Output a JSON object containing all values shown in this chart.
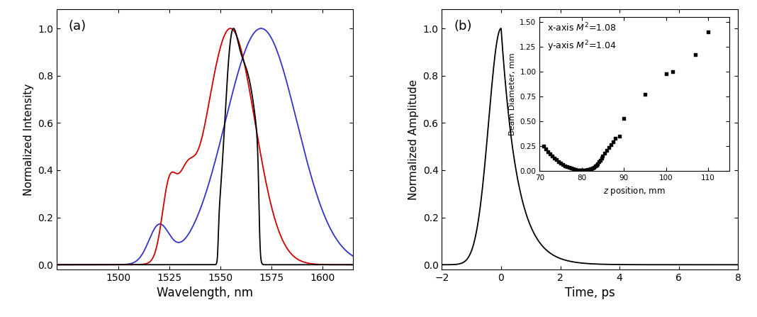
{
  "panel_a": {
    "label": "(a)",
    "xlabel": "Wavelength, nm",
    "ylabel": "Normalized Intensity",
    "xlim": [
      1470,
      1615
    ],
    "ylim": [
      -0.02,
      1.08
    ],
    "xticks": [
      1500,
      1525,
      1550,
      1575,
      1600
    ],
    "yticks": [
      0.0,
      0.2,
      0.4,
      0.6,
      0.8,
      1.0
    ]
  },
  "panel_b": {
    "label": "(b)",
    "xlabel": "Time, ps",
    "ylabel": "Normalized Amplitude",
    "xlim": [
      -2,
      8
    ],
    "ylim": [
      -0.02,
      1.08
    ],
    "xticks": [
      -2,
      0,
      2,
      4,
      6,
      8
    ],
    "yticks": [
      0.0,
      0.2,
      0.4,
      0.6,
      0.8,
      1.0
    ]
  },
  "inset": {
    "xlabel": "z position, mm",
    "ylabel": "Beam Diameter, mm",
    "xlim": [
      70,
      115
    ],
    "ylim": [
      0.0,
      1.55
    ],
    "xticks": [
      70,
      80,
      90,
      100,
      110
    ],
    "yticks": [
      0.0,
      0.25,
      0.5,
      0.75,
      1.0,
      1.25,
      1.5
    ],
    "annotation_line1": "x-axis M",
    "annotation_line2": "y-axis M",
    "z_data": [
      71.0,
      71.5,
      72.0,
      72.5,
      73.0,
      73.5,
      74.0,
      74.5,
      75.0,
      75.5,
      76.0,
      76.5,
      77.0,
      77.5,
      78.0,
      78.5,
      79.0,
      79.3,
      79.6,
      79.9,
      80.2,
      80.5,
      80.8,
      81.1,
      81.4,
      81.7,
      82.0,
      82.3,
      82.6,
      82.9,
      83.2,
      83.5,
      83.8,
      84.1,
      84.4,
      84.7,
      85.0,
      85.5,
      86.0,
      86.5,
      87.0,
      87.5,
      88.0,
      89.0,
      90.0,
      95.0,
      100.0,
      101.5,
      107.0,
      110.0
    ],
    "d_data": [
      0.25,
      0.22,
      0.19,
      0.17,
      0.15,
      0.13,
      0.11,
      0.09,
      0.08,
      0.06,
      0.05,
      0.04,
      0.03,
      0.025,
      0.018,
      0.012,
      0.008,
      0.006,
      0.005,
      0.004,
      0.004,
      0.005,
      0.006,
      0.008,
      0.01,
      0.013,
      0.017,
      0.022,
      0.028,
      0.035,
      0.045,
      0.058,
      0.072,
      0.088,
      0.105,
      0.125,
      0.148,
      0.175,
      0.205,
      0.235,
      0.265,
      0.295,
      0.325,
      0.35,
      0.53,
      0.77,
      0.98,
      1.0,
      1.17,
      1.4
    ]
  },
  "line_color_blue": "#3333cc",
  "line_color_red": "#cc0000",
  "line_color_black": "#000000",
  "background_color": "#ffffff"
}
